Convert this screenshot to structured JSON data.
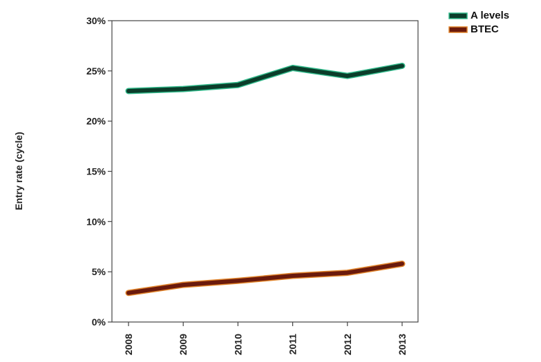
{
  "chart_data": {
    "type": "line",
    "x": [
      "2008",
      "2009",
      "2010",
      "2011",
      "2012",
      "2013"
    ],
    "series": [
      {
        "name": "A levels",
        "values": [
          0.23,
          0.232,
          0.236,
          0.253,
          0.245,
          0.255
        ],
        "color": "#0b3d2a",
        "outline": "#2fb889"
      },
      {
        "name": "BTEC",
        "values": [
          0.029,
          0.037,
          0.041,
          0.046,
          0.049,
          0.058
        ],
        "color": "#6b1a0c",
        "outline": "#e0832a"
      }
    ],
    "ylabel": "Entry rate (cycle)",
    "ylim": [
      0,
      0.3
    ],
    "yticks": [
      "0%",
      "5%",
      "10%",
      "15%",
      "20%",
      "25%",
      "30%"
    ],
    "grid": false,
    "legend": "top-right"
  }
}
